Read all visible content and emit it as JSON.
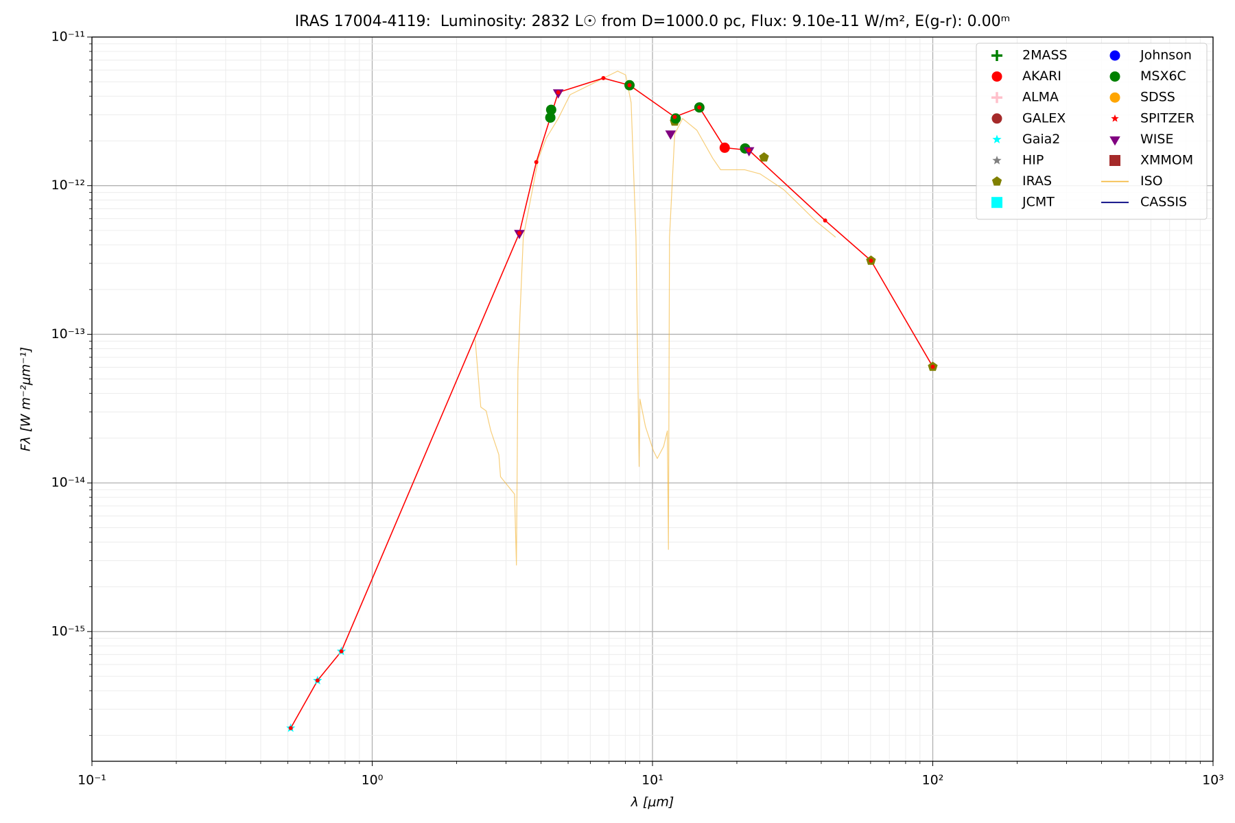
{
  "chart_data": {
    "type": "scatter",
    "title": "IRAS 17004-4119:  Luminosity: 2832 L☉ from D=1000.0 pc, Flux: 9.10e-11 W/m², E(g-r): 0.00ᵐ",
    "x_label": "λ [μm]",
    "y_label": "Fλ [W m⁻²μm⁻¹]",
    "x_log": true,
    "y_log": true,
    "grid": true,
    "legend": "upper right",
    "legend_columns": 2,
    "xlim": [
      0.1,
      1000
    ],
    "ylim": [
      1.34e-16,
      1e-11
    ],
    "xticks": [
      {
        "value": 0.1,
        "label": "10⁻¹"
      },
      {
        "value": 1,
        "label": "10⁰"
      },
      {
        "value": 10,
        "label": "10¹"
      },
      {
        "value": 100,
        "label": "10²"
      },
      {
        "value": 1000,
        "label": "10³"
      }
    ],
    "yticks": [
      {
        "value": 1e-15,
        "label": "10⁻¹⁵"
      },
      {
        "value": 1e-14,
        "label": "10⁻¹⁴"
      },
      {
        "value": 1e-13,
        "label": "10⁻¹³"
      },
      {
        "value": 1e-12,
        "label": "10⁻¹²"
      },
      {
        "value": 1e-11,
        "label": "10⁻¹¹"
      }
    ],
    "series": [
      {
        "name": "2MASS",
        "color": "green",
        "marker": "plus",
        "x": [],
        "values": []
      },
      {
        "name": "AKARI",
        "color": "red",
        "marker": "circle",
        "x": [
          18.1
        ],
        "values": [
          1.8e-12
        ]
      },
      {
        "name": "ALMA",
        "color": "pink",
        "marker": "plus",
        "x": [],
        "values": []
      },
      {
        "name": "GALEX",
        "color": "brown",
        "marker": "circle",
        "x": [],
        "values": []
      },
      {
        "name": "Gaia2",
        "color": "cyan",
        "marker": "star",
        "x": [
          0.512,
          0.638,
          0.776
        ],
        "values": [
          2.24e-16,
          4.68e-16,
          7.36e-16
        ]
      },
      {
        "name": "HIP",
        "color": "gray",
        "marker": "star",
        "x": [],
        "values": []
      },
      {
        "name": "IRAS",
        "color": "olive",
        "marker": "pentagon",
        "x": [
          12.0,
          25.0,
          60.2,
          100
        ],
        "values": [
          2.7e-12,
          1.55e-12,
          3.13e-13,
          6.05e-14
        ]
      },
      {
        "name": "JCMT",
        "color": "cyan",
        "marker": "square",
        "x": [],
        "values": []
      },
      {
        "name": "Johnson",
        "color": "blue",
        "marker": "circle",
        "x": [],
        "values": []
      },
      {
        "name": "MSX6C",
        "color": "green",
        "marker": "circle",
        "x": [
          4.32,
          4.35,
          8.28,
          12.1,
          14.7,
          21.4
        ],
        "values": [
          2.87e-12,
          3.24e-12,
          4.74e-12,
          2.83e-12,
          3.36e-12,
          1.78e-12
        ]
      },
      {
        "name": "SDSS",
        "color": "orange",
        "marker": "circle",
        "x": [],
        "values": []
      },
      {
        "name": "SPITZER",
        "color": "red",
        "marker": "small-star",
        "x": [],
        "values": []
      },
      {
        "name": "WISE",
        "color": "purple",
        "marker": "triangle-down",
        "x": [
          3.35,
          4.61,
          11.6,
          22.1
        ],
        "values": [
          4.8e-13,
          4.24e-12,
          2.24e-12,
          1.73e-12
        ]
      },
      {
        "name": "XMMOM",
        "color": "brown",
        "marker": "square",
        "x": [],
        "values": []
      },
      {
        "name": "ISO",
        "color": "#f4b942",
        "marker": "line",
        "x": [
          2.33,
          2.44,
          2.55,
          2.65,
          2.83,
          2.87,
          3.22,
          3.27,
          3.31,
          3.37,
          3.46,
          3.92,
          4.18,
          4.61,
          5.08,
          6.18,
          7.51,
          8.02,
          8.39,
          8.73,
          8.96,
          9.02,
          9.44,
          10.07,
          10.4,
          10.96,
          11.3,
          11.4,
          11.5,
          12.0,
          12.8,
          14.4,
          16.4,
          17.5,
          21.3,
          24.2,
          29.4,
          33.5,
          38.2,
          45.0
        ],
        "values": [
          9.2e-14,
          3.24e-14,
          3.05e-14,
          2.24e-14,
          1.55e-14,
          1.1e-14,
          8.4e-15,
          2.8e-15,
          5.6e-14,
          1.41e-13,
          4.51e-13,
          1.53e-12,
          2.09e-12,
          2.83e-12,
          4.09e-12,
          4.91e-12,
          5.9e-12,
          5.56e-12,
          3.62e-12,
          4.51e-13,
          1.29e-14,
          3.66e-14,
          2.39e-14,
          1.65e-14,
          1.46e-14,
          1.76e-14,
          2.24e-14,
          3.57e-15,
          4.5e-13,
          2.22e-12,
          2.83e-12,
          2.36e-12,
          1.53e-12,
          1.28e-12,
          1.28e-12,
          1.2e-12,
          9.4e-13,
          7.4e-13,
          5.8e-13,
          4.5e-13
        ]
      },
      {
        "name": "CASSIS",
        "color": "navy",
        "marker": "line",
        "x": [],
        "values": []
      },
      {
        "color": "red",
        "marker": "dot-line",
        "x": [
          0.512,
          0.638,
          0.776,
          3.35,
          3.85,
          4.61,
          6.68,
          8.28,
          12.0,
          14.7,
          18.1,
          22.1,
          41.3,
          60.2,
          100
        ],
        "values": [
          2.24e-16,
          4.68e-16,
          7.36e-16,
          4.8e-13,
          1.44e-12,
          4.24e-12,
          5.29e-12,
          4.74e-12,
          2.9e-12,
          3.36e-12,
          1.8e-12,
          1.73e-12,
          5.83e-13,
          3.13e-13,
          6.05e-14
        ]
      }
    ]
  }
}
